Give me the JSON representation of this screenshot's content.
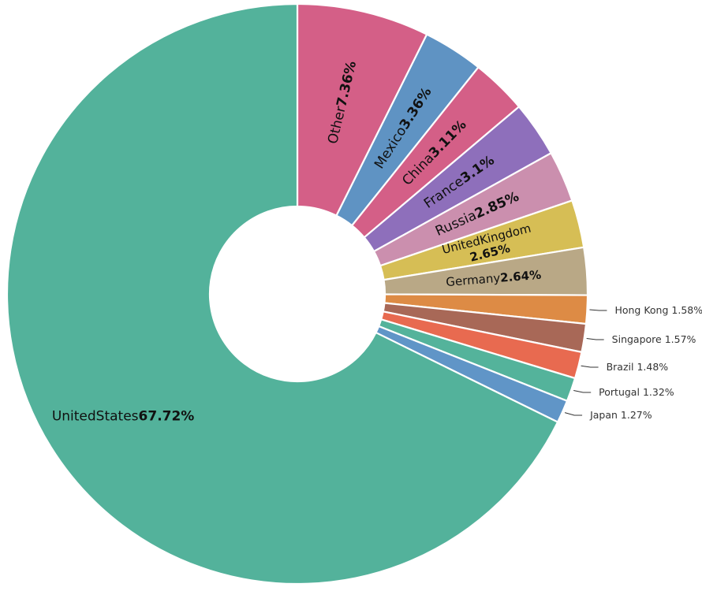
{
  "chart_data": {
    "type": "pie",
    "donut": true,
    "start_angle_deg": 90,
    "direction": "clockwise",
    "title": "",
    "slices": [
      {
        "label": "Other",
        "name_text": "Other",
        "pct_text": "7.36%",
        "value": 7.36,
        "color": "#d45f87"
      },
      {
        "label": "Mexico",
        "name_text": "Mexico",
        "pct_text": "3.36%",
        "value": 3.36,
        "color": "#5f93c3"
      },
      {
        "label": "China",
        "name_text": "China",
        "pct_text": "3.11%",
        "value": 3.11,
        "color": "#d45f87"
      },
      {
        "label": "France",
        "name_text": "France",
        "pct_text": "3.1%",
        "value": 3.1,
        "color": "#8e6fbb"
      },
      {
        "label": "Russia",
        "name_text": "Russia",
        "pct_text": "2.85%",
        "value": 2.85,
        "color": "#cb8fae"
      },
      {
        "label": "UnitedKingdom",
        "name_text": "UnitedKingdom",
        "pct_text": "2.65%",
        "value": 2.65,
        "color": "#d6be55"
      },
      {
        "label": "Germany",
        "name_text": "Germany",
        "pct_text": "2.64%",
        "value": 2.64,
        "color": "#b9a886"
      },
      {
        "label": "Hong Kong",
        "name_text": "Hong Kong",
        "pct_text": "1.58%",
        "value": 1.58,
        "color": "#dd8b45"
      },
      {
        "label": "Singapore",
        "name_text": "Singapore",
        "pct_text": "1.57%",
        "value": 1.57,
        "color": "#a86857"
      },
      {
        "label": "Brazil",
        "name_text": "Brazil",
        "pct_text": "1.48%",
        "value": 1.48,
        "color": "#e86a50"
      },
      {
        "label": "Portugal",
        "name_text": "Portugal",
        "pct_text": "1.32%",
        "value": 1.32,
        "color": "#54b39b"
      },
      {
        "label": "Japan",
        "name_text": "Japan",
        "pct_text": "1.27%",
        "value": 1.27,
        "color": "#6095c7"
      },
      {
        "label": "UnitedStates",
        "name_text": "UnitedStates",
        "pct_text": "67.72%",
        "value": 67.72,
        "color": "#53b29b"
      }
    ]
  }
}
